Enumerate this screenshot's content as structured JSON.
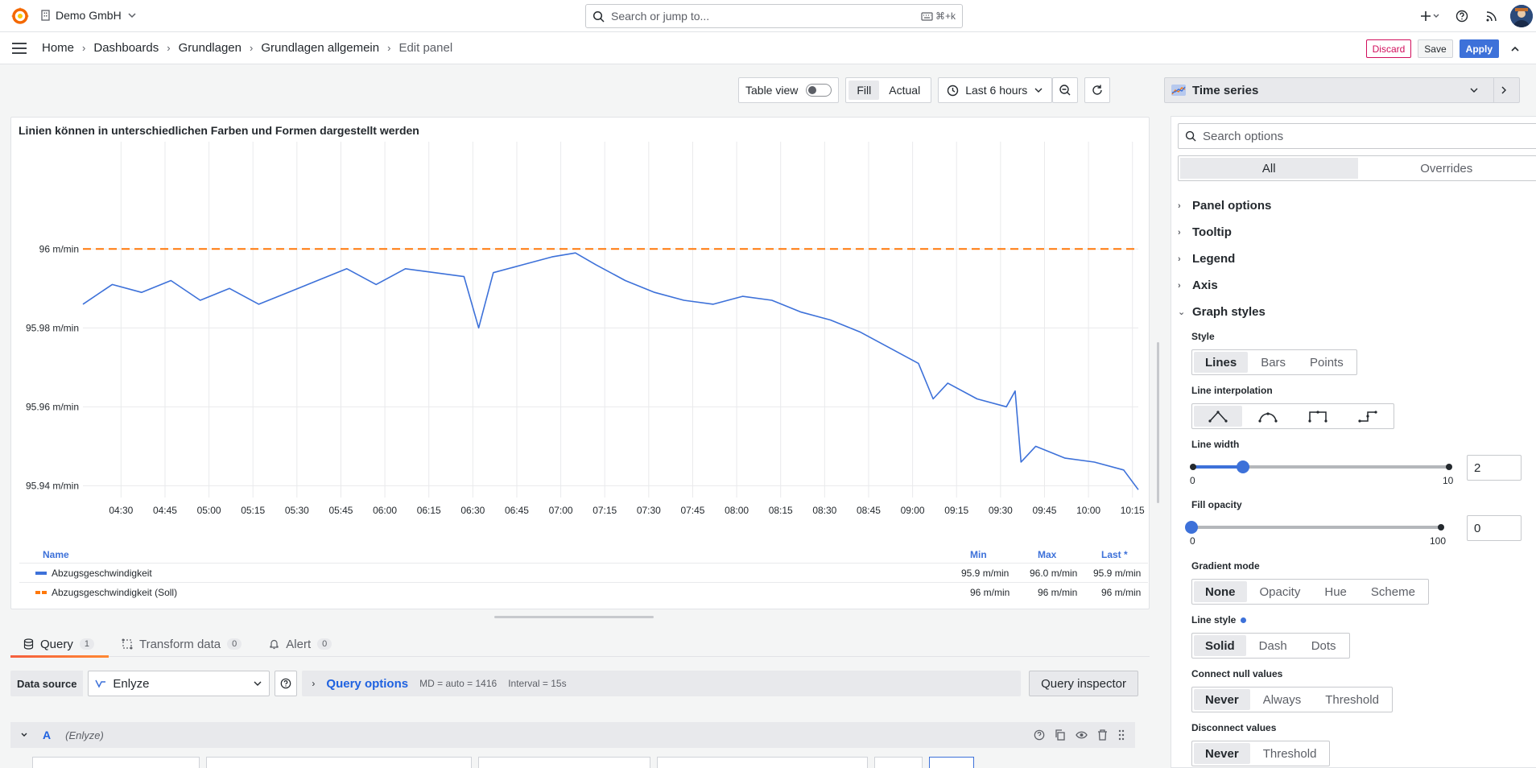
{
  "topbar": {
    "org_name": "Demo GmbH",
    "search_placeholder": "Search or jump to...",
    "search_shortcut": "⌘+k"
  },
  "breadcrumb": {
    "items": [
      "Home",
      "Dashboards",
      "Grundlagen",
      "Grundlagen allgemein",
      "Edit panel"
    ],
    "discard": "Discard",
    "save": "Save",
    "apply": "Apply"
  },
  "toolbar": {
    "table_view": "Table view",
    "fill": "Fill",
    "actual": "Actual",
    "time_range": "Last 6 hours"
  },
  "panel": {
    "title": "Linien können in unterschiedlichen Farben und Formen dargestellt werden"
  },
  "chart_data": {
    "type": "line",
    "y_ticks": [
      "96 m/min",
      "95.98 m/min",
      "95.96 m/min",
      "95.94 m/min"
    ],
    "y_tick_values": [
      96.0,
      95.98,
      95.96,
      95.94
    ],
    "ylim": [
      95.9313,
      96.0272
    ],
    "x_ticks": [
      "04:30",
      "04:45",
      "05:00",
      "05:15",
      "05:30",
      "05:45",
      "06:00",
      "06:15",
      "06:30",
      "06:45",
      "07:00",
      "07:15",
      "07:30",
      "07:45",
      "08:00",
      "08:15",
      "08:30",
      "08:45",
      "09:00",
      "09:15",
      "09:30",
      "09:45",
      "10:00",
      "10:15"
    ],
    "x_range": [
      "04:17",
      "10:17"
    ],
    "grid": true,
    "series": [
      {
        "name": "Abzugsgeschwindigkeit",
        "color": "#3d71d9",
        "style": "solid",
        "x": [
          "04:17",
          "04:27",
          "04:37",
          "04:47",
          "04:57",
          "05:07",
          "05:17",
          "05:27",
          "05:37",
          "05:47",
          "05:57",
          "06:07",
          "06:17",
          "06:27",
          "06:32",
          "06:37",
          "06:47",
          "06:57",
          "07:05",
          "07:12",
          "07:22",
          "07:32",
          "07:42",
          "07:52",
          "08:02",
          "08:12",
          "08:22",
          "08:32",
          "08:42",
          "08:52",
          "09:02",
          "09:07",
          "09:12",
          "09:22",
          "09:32",
          "09:35",
          "09:37",
          "09:42",
          "09:52",
          "10:02",
          "10:12",
          "10:17"
        ],
        "values": [
          95.986,
          95.991,
          95.989,
          95.992,
          95.987,
          95.99,
          95.986,
          95.989,
          95.992,
          95.995,
          95.991,
          95.995,
          95.994,
          95.993,
          95.98,
          95.994,
          95.996,
          95.998,
          95.999,
          95.996,
          95.992,
          95.989,
          95.987,
          95.986,
          95.988,
          95.987,
          95.984,
          95.982,
          95.979,
          95.975,
          95.971,
          95.962,
          95.966,
          95.962,
          95.96,
          95.964,
          95.946,
          95.95,
          95.947,
          95.946,
          95.944,
          95.939
        ]
      },
      {
        "name": "Abzugsgeschwindigkeit (Soll)",
        "color": "#ff780a",
        "style": "dashed",
        "x": [
          "04:17",
          "10:17"
        ],
        "values": [
          96.0,
          96.0
        ]
      }
    ],
    "legend": {
      "headers": {
        "name": "Name",
        "min": "Min",
        "max": "Max",
        "last": "Last *"
      },
      "rows": [
        {
          "name": "Abzugsgeschwindigkeit",
          "min": "95.9 m/min",
          "max": "96.0 m/min",
          "last": "95.9 m/min",
          "color": "#3d71d9"
        },
        {
          "name": "Abzugsgeschwindigkeit (Soll)",
          "min": "96 m/min",
          "max": "96 m/min",
          "last": "96 m/min",
          "color": "#ff780a"
        }
      ]
    }
  },
  "query_tabs": [
    {
      "label": "Query",
      "count": "1"
    },
    {
      "label": "Transform data",
      "count": "0"
    },
    {
      "label": "Alert",
      "count": "0"
    }
  ],
  "query": {
    "data_source_label": "Data source",
    "data_source": "Enlyze",
    "query_options": "Query options",
    "md": "MD = auto = 1416",
    "interval": "Interval = 15s",
    "inspector": "Query inspector",
    "row_letter": "A",
    "row_ds": "(Enlyze)"
  },
  "options": {
    "viz": "Time series",
    "search_placeholder": "Search options",
    "tab_all": "All",
    "tab_overrides": "Overrides",
    "sections": [
      "Panel options",
      "Tooltip",
      "Legend",
      "Axis",
      "Graph styles"
    ],
    "style_label": "Style",
    "style_options": [
      "Lines",
      "Bars",
      "Points"
    ],
    "interp_label": "Line interpolation",
    "line_width_label": "Line width",
    "line_width": {
      "min": "0",
      "max": "10",
      "value": "2",
      "value_num": 2,
      "max_num": 10
    },
    "fill_opacity_label": "Fill opacity",
    "fill_opacity": {
      "min": "0",
      "max": "100",
      "value": "0",
      "value_num": 0,
      "max_num": 100
    },
    "gradient_label": "Gradient mode",
    "gradient_options": [
      "None",
      "Opacity",
      "Hue",
      "Scheme"
    ],
    "line_style_label": "Line style",
    "line_style_options": [
      "Solid",
      "Dash",
      "Dots"
    ],
    "connect_null_label": "Connect null values",
    "connect_null_options": [
      "Never",
      "Always",
      "Threshold"
    ],
    "disconnect_label": "Disconnect values",
    "disconnect_options": [
      "Never",
      "Threshold"
    ]
  }
}
